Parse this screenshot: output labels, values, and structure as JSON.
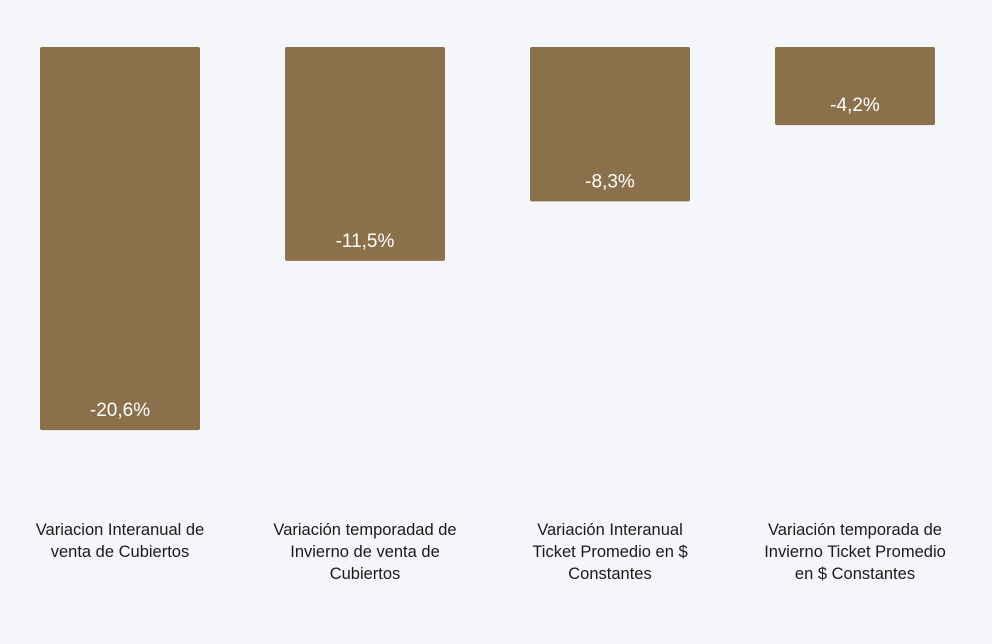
{
  "chart_data": {
    "type": "bar",
    "title": "",
    "xlabel": "",
    "ylabel": "",
    "ylim": [
      -24,
      0
    ],
    "grid": false,
    "legend": "none",
    "categories": [
      [
        "Variacion Interanual de",
        "venta de Cubiertos"
      ],
      [
        "Variación temporadad de",
        "Invierno de venta de",
        "Cubiertos"
      ],
      [
        "Variación  Interanual",
        "Ticket Promedio  en $",
        "Constantes"
      ],
      [
        "Variación temporada de",
        "Invierno Ticket Promedio",
        "en $ Constantes"
      ]
    ],
    "values": [
      -20.6,
      -11.5,
      -8.3,
      -4.2
    ],
    "data_labels": [
      "-20,6%",
      "-11,5%",
      "-8,3%",
      "-4,2%"
    ],
    "bar_color": "#8a714c",
    "background": "#f5f6fa",
    "value_label_color": "#ffffff",
    "category_label_color": "#1a1a1a"
  }
}
